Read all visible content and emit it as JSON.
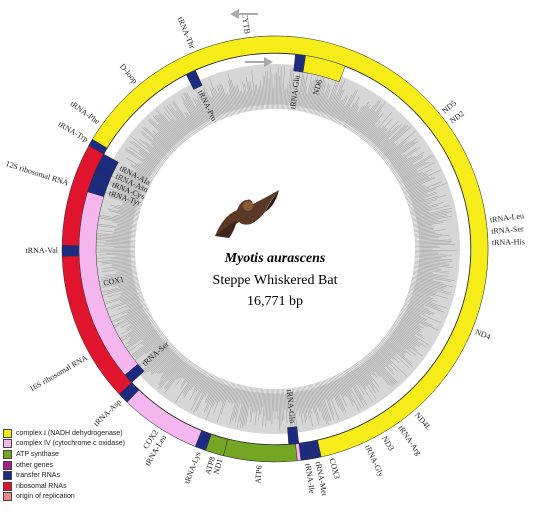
{
  "map": {
    "species": "Myotis aurascens",
    "common_name": "Steppe Whiskered Bat",
    "size_label": "16,771 bp",
    "genome_length": 16771
  },
  "legend": [
    {
      "key": "complex1",
      "label": "complex I (NADH dehydrogenase)",
      "color": "#f5ec1a"
    },
    {
      "key": "complex4",
      "label": "complex IV (cytochrome c oxidase)",
      "color": "#f5b5ef"
    },
    {
      "key": "atp",
      "label": "ATP synthase",
      "color": "#74a623"
    },
    {
      "key": "other",
      "label": "other genes",
      "color": "#a3208c"
    },
    {
      "key": "trna",
      "label": "transfer RNAs",
      "color": "#1c2b80"
    },
    {
      "key": "rrna",
      "label": "ribosomal RNAs",
      "color": "#e0142d"
    },
    {
      "key": "origin",
      "label": "origin of replication",
      "color": "#f08585"
    }
  ],
  "genes": [
    {
      "name": "ND1",
      "type": "complex1",
      "strand": "out",
      "start": 90,
      "end": 119
    },
    {
      "name": "tRNA-Leu",
      "type": "trna",
      "strand": "out",
      "start": 119,
      "end": 122
    },
    {
      "name": "16S ribosomal RNA",
      "type": "rrna",
      "strand": "out",
      "start": 122,
      "end": 178
    },
    {
      "name": "tRNA-Val",
      "type": "trna",
      "strand": "out",
      "start": 178,
      "end": 181
    },
    {
      "name": "12S ribosomal RNA",
      "type": "rrna",
      "strand": "out",
      "start": 181,
      "end": 214
    },
    {
      "name": "tRNA-Phe",
      "type": "trna",
      "strand": "out",
      "start": 214,
      "end": 217
    },
    {
      "name": "D-loop",
      "type": "origin",
      "strand": "out",
      "start": 217,
      "end": 243
    },
    {
      "name": "tRNA-Pro",
      "type": "trna",
      "strand": "in",
      "start": 243,
      "end": 246
    },
    {
      "name": "tRNA-Thr",
      "type": "trna",
      "strand": "out",
      "start": 246,
      "end": 249
    },
    {
      "name": "CYTB",
      "type": "other",
      "strand": "out",
      "start": 249,
      "end": 276
    },
    {
      "name": "tRNA-Glu",
      "type": "trna",
      "strand": "in",
      "start": 276,
      "end": 279
    },
    {
      "name": "ND6",
      "type": "complex1",
      "strand": "in",
      "start": 279,
      "end": 291
    },
    {
      "name": "ND5",
      "type": "complex1",
      "strand": "out",
      "start": 291,
      "end": 351
    },
    {
      "name": "tRNA-Leu",
      "type": "trna",
      "strand": "out",
      "start": 351,
      "end": 354
    },
    {
      "name": "tRNA-Ser",
      "type": "trna",
      "strand": "out",
      "start": 354,
      "end": 357
    },
    {
      "name": "tRNA-His",
      "type": "trna",
      "strand": "out",
      "start": 357,
      "end": 360
    },
    {
      "name": "ND4",
      "type": "complex1",
      "strand": "out",
      "start": 360,
      "end": 405
    },
    {
      "name": "ND4L",
      "type": "complex1",
      "strand": "out",
      "start": 405,
      "end": 414
    },
    {
      "name": "tRNA-Arg",
      "type": "trna",
      "strand": "out",
      "start": 414,
      "end": 416
    },
    {
      "name": "ND3",
      "type": "complex1",
      "strand": "out",
      "start": 416,
      "end": 424
    },
    {
      "name": "tRNA-Gly",
      "type": "trna",
      "strand": "out",
      "start": 424,
      "end": 426
    },
    {
      "name": "COX3",
      "type": "complex4",
      "strand": "out",
      "start": 426,
      "end": 444
    },
    {
      "name": "ATP6",
      "type": "atp",
      "strand": "out",
      "start": 444,
      "end": 464
    },
    {
      "name": "ATP8",
      "type": "atp",
      "strand": "out",
      "start": 464,
      "end": 469
    },
    {
      "name": "tRNA-Lys",
      "type": "trna",
      "strand": "out",
      "start": 469,
      "end": 472
    },
    {
      "name": "COX2",
      "type": "complex4",
      "strand": "out",
      "start": 472,
      "end": 494
    },
    {
      "name": "tRNA-Asp",
      "type": "trna",
      "strand": "out",
      "start": 494,
      "end": 497
    },
    {
      "name": "tRNA-Ser",
      "type": "trna",
      "strand": "in",
      "start": 497,
      "end": 500
    },
    {
      "name": "COX1",
      "type": "complex4",
      "strand": "in",
      "start": 500,
      "end": 557
    },
    {
      "name": "tRNA-Tyr",
      "type": "trna",
      "strand": "in",
      "start": 557,
      "end": 560
    },
    {
      "name": "tRNA-Cys",
      "type": "trna",
      "strand": "in",
      "start": 560,
      "end": 563
    },
    {
      "name": "tRNA-Asn",
      "type": "trna",
      "strand": "in",
      "start": 563,
      "end": 566
    },
    {
      "name": "tRNA-Ala",
      "type": "trna",
      "strand": "in",
      "start": 566,
      "end": 569
    },
    {
      "name": "tRNA-Trp",
      "type": "trna",
      "strand": "out",
      "start": 569,
      "end": 571
    },
    {
      "name": "ND2",
      "type": "complex1",
      "strand": "out",
      "start": 571,
      "end": 437.5
    },
    {
      "name": "tRNA-Met",
      "type": "trna",
      "strand": "out",
      "start": 437.5,
      "end": 440
    },
    {
      "name": "tRNA-Ile",
      "type": "trna",
      "strand": "out",
      "start": 440,
      "end": 443
    },
    {
      "name": "tRNA-Gln",
      "type": "trna",
      "strand": "in",
      "start": 443,
      "end": 446
    }
  ]
}
